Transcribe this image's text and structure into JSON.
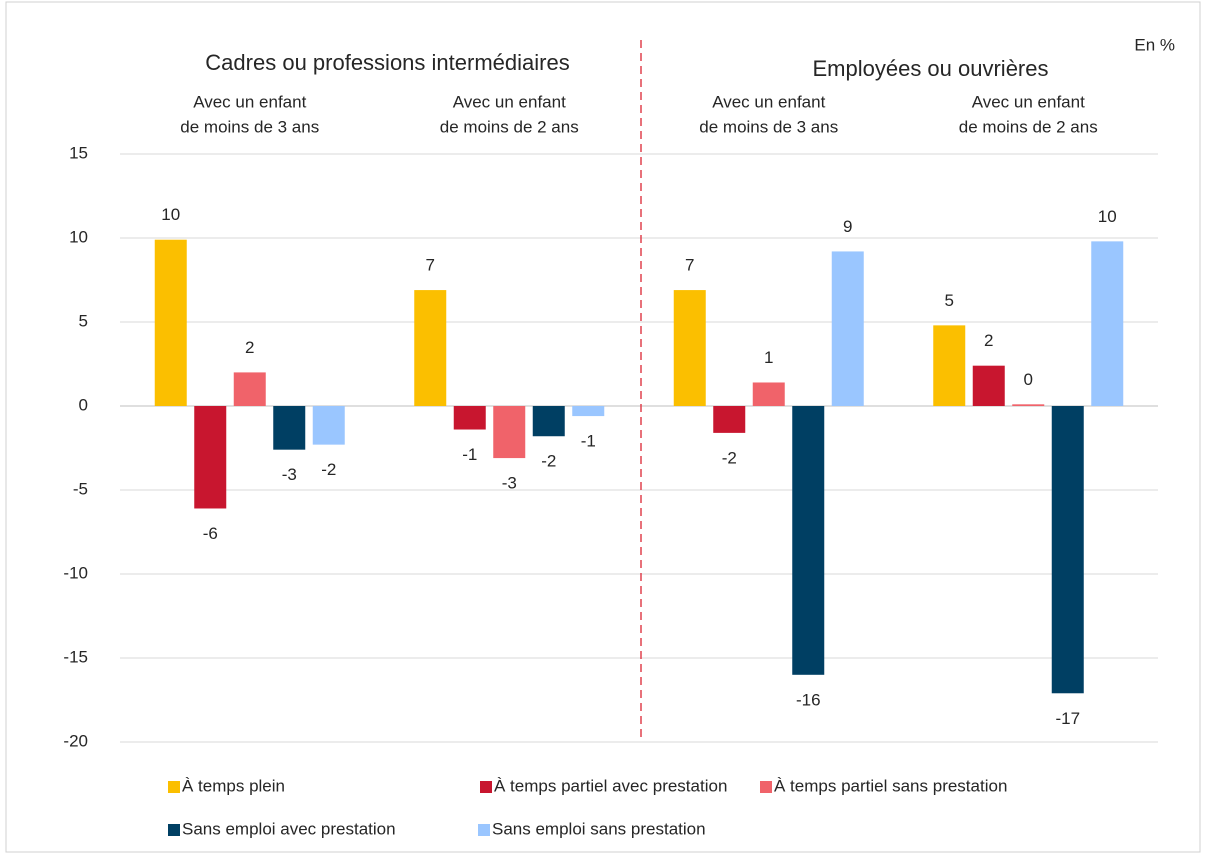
{
  "chart_data": {
    "type": "bar",
    "unit_label": "En %",
    "groups": [
      {
        "label": "Cadres ou professions intermédiaires"
      },
      {
        "label": "Employées ou ouvrières"
      }
    ],
    "categories": [
      [
        "Avec un enfant",
        "de moins de 3 ans"
      ],
      [
        "Avec un enfant",
        "de moins de 2 ans"
      ],
      [
        "Avec un enfant",
        "de moins de 3 ans"
      ],
      [
        "Avec un enfant",
        "de moins de 2 ans"
      ]
    ],
    "series": [
      {
        "name": "À temps plein",
        "color": "#fbbf00",
        "values": [
          9.9,
          6.9,
          6.9,
          4.8
        ],
        "value_labels": [
          "10",
          "7",
          "7",
          "5"
        ]
      },
      {
        "name": "À temps partiel avec prestation",
        "color": "#c8162f",
        "values": [
          -6.1,
          -1.4,
          -1.6,
          2.4
        ],
        "value_labels": [
          "-6",
          "-1",
          "-2",
          "2"
        ]
      },
      {
        "name": "À temps partiel sans prestation",
        "color": "#f0636a",
        "values": [
          2.0,
          -3.1,
          1.4,
          0.1
        ],
        "value_labels": [
          "2",
          "-3",
          "1",
          "0"
        ]
      },
      {
        "name": "Sans emploi avec prestation",
        "color": "#003f63",
        "values": [
          -2.6,
          -1.8,
          -16.0,
          -17.1
        ],
        "value_labels": [
          "-3",
          "-2",
          "-16",
          "-17"
        ]
      },
      {
        "name": "Sans emploi sans prestation",
        "color": "#9ac6ff",
        "values": [
          -2.3,
          -0.6,
          9.2,
          9.8
        ],
        "value_labels": [
          "-2",
          "-1",
          "9",
          "10"
        ]
      }
    ],
    "ylim": [
      -20,
      15
    ],
    "yticks": [
      -20,
      -15,
      -10,
      -5,
      0,
      5,
      10,
      15
    ],
    "grid": true
  }
}
